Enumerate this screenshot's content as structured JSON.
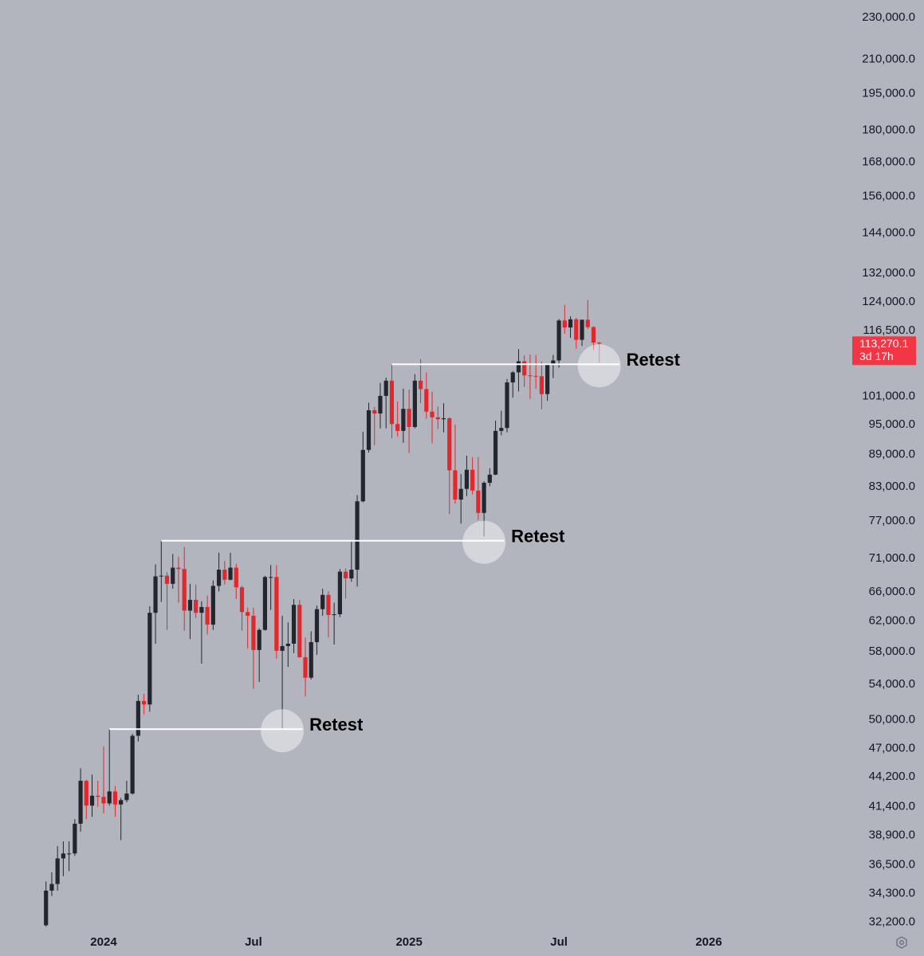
{
  "chart_data": {
    "type": "candlestick",
    "categories": [
      null,
      null,
      null,
      null,
      null,
      null,
      null,
      null,
      null,
      null,
      "2024",
      null,
      null,
      null,
      null,
      null,
      null,
      null,
      null,
      null,
      null,
      null,
      null,
      null,
      null,
      null,
      null,
      null,
      null,
      null,
      null,
      null,
      null,
      null,
      null,
      null,
      "Jul",
      null,
      null,
      null,
      null,
      null,
      null,
      null,
      null,
      null,
      null,
      null,
      null,
      null,
      null,
      null,
      null,
      null,
      null,
      null,
      null,
      null,
      null,
      null,
      null,
      null,
      null,
      "2025",
      null,
      null,
      null,
      null,
      null,
      null,
      null,
      null,
      null,
      null,
      null,
      null,
      null,
      null,
      null,
      null,
      null,
      null,
      null,
      null,
      null,
      null,
      null,
      null,
      null,
      "Jul",
      null,
      null,
      null,
      null,
      null,
      null,
      null,
      null,
      null,
      null,
      null,
      null,
      null,
      null,
      null,
      null,
      null,
      null,
      null,
      null,
      null,
      null,
      null,
      null,
      null,
      "2026"
    ],
    "open": [
      32000,
      34500,
      35000,
      37000,
      37400,
      37400,
      39900,
      43800,
      41500,
      42400,
      42300,
      41700,
      42800,
      41600,
      42000,
      42600,
      48300,
      52100,
      51700,
      63100,
      68300,
      68400,
      67200,
      69600,
      69400,
      63400,
      64900,
      63100,
      63900,
      61500,
      66900,
      69300,
      67800,
      69600,
      66700,
      63200,
      62700,
      58200,
      60800,
      68200,
      68200,
      58100,
      58700,
      59000,
      64200,
      57300,
      54800,
      59200,
      63600,
      65600,
      62800,
      62900,
      69000,
      68000,
      69300,
      80400,
      89900,
      98000,
      97300,
      101100,
      104500,
      95100,
      93700,
      98300,
      94500,
      104500,
      102600,
      97700,
      96500,
      96100,
      96300,
      86000,
      80700,
      82600,
      86100,
      82300,
      78400,
      83700,
      85200,
      93700,
      94300,
      104100,
      106400,
      109000,
      105700,
      105600,
      105500,
      101500,
      108300,
      109200,
      119100,
      117300,
      119400,
      114200,
      119300,
      117400,
      113500,
      null,
      null,
      null,
      null,
      null,
      null,
      null,
      null,
      null,
      null,
      null,
      null,
      null,
      null,
      null,
      null,
      null,
      null,
      null
    ],
    "high": [
      35200,
      35900,
      38000,
      38400,
      38400,
      40300,
      45000,
      43900,
      44400,
      43800,
      47200,
      49000,
      43300,
      42200,
      43800,
      48500,
      52800,
      52900,
      64000,
      70100,
      73800,
      68900,
      71700,
      71300,
      72800,
      67200,
      67100,
      64700,
      65500,
      67700,
      71900,
      70600,
      71900,
      70200,
      66900,
      63800,
      63800,
      61000,
      68400,
      70000,
      70000,
      62700,
      61800,
      65000,
      64900,
      59800,
      60600,
      64100,
      66500,
      66100,
      64500,
      69400,
      69500,
      73600,
      81500,
      93500,
      99600,
      98700,
      104000,
      105200,
      108300,
      99900,
      102700,
      102500,
      106000,
      109500,
      106400,
      102000,
      98800,
      99500,
      96500,
      95000,
      85300,
      88800,
      88500,
      88500,
      84000,
      86400,
      95800,
      97900,
      104900,
      106700,
      111900,
      110400,
      110600,
      110500,
      108900,
      108500,
      110500,
      119500,
      123200,
      120200,
      119800,
      119300,
      124500,
      117600,
      113700,
      null,
      null,
      null,
      null,
      null,
      null,
      null,
      null,
      null,
      null,
      null,
      null,
      null,
      null,
      null,
      null,
      null,
      null,
      null
    ],
    "low": [
      31900,
      34100,
      34500,
      35600,
      36000,
      37200,
      39200,
      40300,
      40500,
      41400,
      40800,
      41500,
      40500,
      38500,
      41800,
      42500,
      47700,
      50600,
      50900,
      59000,
      64600,
      60800,
      66500,
      64500,
      60700,
      59600,
      62400,
      56500,
      60200,
      60800,
      66100,
      67100,
      67700,
      65000,
      60700,
      58400,
      53500,
      54300,
      60700,
      63500,
      57100,
      49000,
      56100,
      57800,
      57200,
      52600,
      54600,
      57600,
      62700,
      59800,
      58900,
      62500,
      65100,
      67500,
      66800,
      80200,
      89400,
      90800,
      94200,
      94200,
      92200,
      92500,
      91300,
      89300,
      94200,
      99500,
      96200,
      91200,
      94100,
      93400,
      78200,
      80000,
      76600,
      81300,
      81600,
      77200,
      74500,
      83100,
      85100,
      92800,
      93400,
      100700,
      102100,
      103100,
      100400,
      102700,
      98200,
      100000,
      105100,
      107500,
      115700,
      114700,
      112000,
      112700,
      116900,
      111700,
      108700,
      null,
      null,
      null,
      null,
      null,
      null,
      null,
      null,
      null,
      null,
      null,
      null,
      null,
      null,
      null,
      null,
      null,
      null,
      null
    ],
    "close": [
      34500,
      35000,
      37000,
      37400,
      37400,
      39900,
      43800,
      41500,
      42400,
      42300,
      41700,
      42800,
      41600,
      42000,
      42600,
      48300,
      52100,
      51700,
      63100,
      68300,
      68400,
      67200,
      69600,
      69400,
      63400,
      64900,
      63100,
      63900,
      61500,
      66900,
      69300,
      67800,
      69600,
      66700,
      63200,
      62700,
      58200,
      60800,
      68200,
      68200,
      58100,
      58700,
      59000,
      64200,
      57300,
      54800,
      59200,
      63600,
      65600,
      62800,
      62900,
      69000,
      68000,
      69300,
      80400,
      89900,
      98000,
      97300,
      101100,
      104500,
      95100,
      93700,
      98300,
      94500,
      104500,
      102600,
      97700,
      96500,
      96100,
      96300,
      86000,
      80700,
      82600,
      86100,
      82300,
      78400,
      83700,
      85200,
      93700,
      94300,
      104100,
      106400,
      109000,
      105700,
      105600,
      105500,
      101500,
      108300,
      109200,
      119100,
      117300,
      119400,
      114200,
      119300,
      117400,
      113500,
      113270.1,
      null,
      null,
      null,
      null,
      null,
      null,
      null,
      null,
      null,
      null,
      null,
      null,
      null,
      null,
      null,
      null,
      null,
      null,
      null
    ],
    "up_color": "#23262d",
    "down_color": "#e0282d",
    "log_scale": true,
    "grid": false,
    "ylim": [
      31800,
      239000
    ],
    "yticks": [
      {
        "value": 230000,
        "label": "230,000.0"
      },
      {
        "value": 210000,
        "label": "210,000.0"
      },
      {
        "value": 195000,
        "label": "195,000.0"
      },
      {
        "value": 180000,
        "label": "180,000.0"
      },
      {
        "value": 168000,
        "label": "168,000.0"
      },
      {
        "value": 156000,
        "label": "156,000.0"
      },
      {
        "value": 144000,
        "label": "144,000.0"
      },
      {
        "value": 132000,
        "label": "132,000.0"
      },
      {
        "value": 124000,
        "label": "124,000.0"
      },
      {
        "value": 116500,
        "label": "116,500.0"
      },
      {
        "value": 101000,
        "label": "101,000.0"
      },
      {
        "value": 95000,
        "label": "95,000.0"
      },
      {
        "value": 89000,
        "label": "89,000.0"
      },
      {
        "value": 83000,
        "label": "83,000.0"
      },
      {
        "value": 77000,
        "label": "77,000.0"
      },
      {
        "value": 71000,
        "label": "71,000.0"
      },
      {
        "value": 66000,
        "label": "66,000.0"
      },
      {
        "value": 62000,
        "label": "62,000.0"
      },
      {
        "value": 58000,
        "label": "58,000.0"
      },
      {
        "value": 54000,
        "label": "54,000.0"
      },
      {
        "value": 50000,
        "label": "50,000.0"
      },
      {
        "value": 47000,
        "label": "47,000.0"
      },
      {
        "value": 44200,
        "label": "44,200.0"
      },
      {
        "value": 41400,
        "label": "41,400.0"
      },
      {
        "value": 38900,
        "label": "38,900.0"
      },
      {
        "value": 36500,
        "label": "36,500.0"
      },
      {
        "value": 34300,
        "label": "34,300.0"
      },
      {
        "value": 32200,
        "label": "32,200.0"
      }
    ],
    "levels": [
      {
        "value": 49000,
        "text": "Retest"
      },
      {
        "value": 73800,
        "text": "Retest"
      },
      {
        "value": 108300,
        "text": "Retest"
      }
    ],
    "last_price": {
      "value": 113270.1,
      "label": "113,270.1"
    },
    "countdown": "3d 17h",
    "last_price_color": "#f23645"
  }
}
